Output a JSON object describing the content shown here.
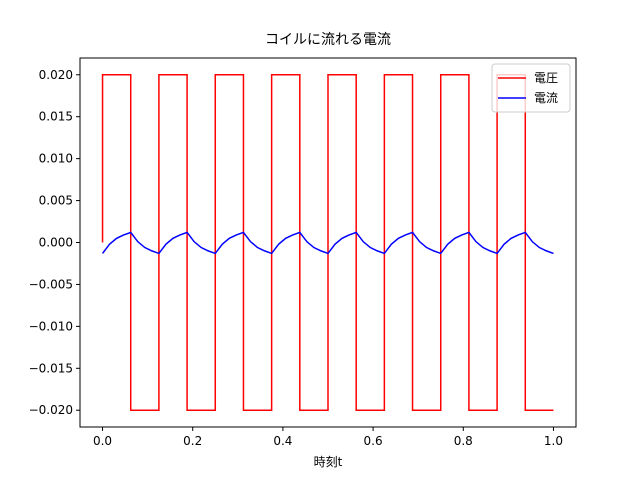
{
  "chart_data": {
    "type": "line",
    "title": "コイルに流れる電流",
    "x_label": "時刻t",
    "x": [
      0,
      0,
      0.015625,
      0.03125,
      0.046875,
      0.0625,
      0.0625,
      0.078125,
      0.09375,
      0.109375,
      0.125,
      0.125,
      0.140625,
      0.15625,
      0.171875,
      0.1875,
      0.1875,
      0.203125,
      0.21875,
      0.234375,
      0.25,
      0.25,
      0.265625,
      0.28125,
      0.296875,
      0.3125,
      0.3125,
      0.328125,
      0.34375,
      0.359375,
      0.375,
      0.375,
      0.390625,
      0.40625,
      0.421875,
      0.4375,
      0.4375,
      0.453125,
      0.46875,
      0.484375,
      0.5,
      0.5,
      0.515625,
      0.53125,
      0.546875,
      0.5625,
      0.5625,
      0.578125,
      0.59375,
      0.609375,
      0.625,
      0.625,
      0.640625,
      0.65625,
      0.671875,
      0.6875,
      0.6875,
      0.703125,
      0.71875,
      0.734375,
      0.75,
      0.75,
      0.765625,
      0.78125,
      0.796875,
      0.8125,
      0.8125,
      0.828125,
      0.84375,
      0.859375,
      0.875,
      0.875,
      0.890625,
      0.90625,
      0.921875,
      0.9375,
      0.9375,
      0.953125,
      0.96875,
      0.984375,
      1
    ],
    "series": [
      {
        "name": "電圧",
        "color": "#ff0000",
        "values": [
          0,
          0.02,
          0.02,
          0.02,
          0.02,
          0.02,
          -0.02,
          -0.02,
          -0.02,
          -0.02,
          -0.02,
          0.02,
          0.02,
          0.02,
          0.02,
          0.02,
          -0.02,
          -0.02,
          -0.02,
          -0.02,
          -0.02,
          0.02,
          0.02,
          0.02,
          0.02,
          0.02,
          -0.02,
          -0.02,
          -0.02,
          -0.02,
          -0.02,
          0.02,
          0.02,
          0.02,
          0.02,
          0.02,
          -0.02,
          -0.02,
          -0.02,
          -0.02,
          -0.02,
          0.02,
          0.02,
          0.02,
          0.02,
          0.02,
          -0.02,
          -0.02,
          -0.02,
          -0.02,
          -0.02,
          0.02,
          0.02,
          0.02,
          0.02,
          0.02,
          -0.02,
          -0.02,
          -0.02,
          -0.02,
          -0.02,
          0.02,
          0.02,
          0.02,
          0.02,
          0.02,
          -0.02,
          -0.02,
          -0.02,
          -0.02,
          -0.02,
          0.02,
          0.02,
          0.02,
          0.02,
          0.02,
          -0.02,
          -0.02,
          -0.02,
          -0.02,
          -0.02
        ]
      },
      {
        "name": "電流",
        "color": "#0000ff",
        "values": [
          -0.0013,
          -0.0013,
          -0.0002,
          0.0005,
          0.0009,
          0.0012,
          0.0012,
          0.0001,
          -0.0006,
          -0.001,
          -0.0013,
          -0.0013,
          -0.0002,
          0.0005,
          0.0009,
          0.0012,
          0.0012,
          0.0001,
          -0.0006,
          -0.001,
          -0.0013,
          -0.0013,
          -0.0002,
          0.0005,
          0.0009,
          0.0012,
          0.0012,
          0.0001,
          -0.0006,
          -0.001,
          -0.0013,
          -0.0013,
          -0.0002,
          0.0005,
          0.0009,
          0.0012,
          0.0012,
          0.0001,
          -0.0006,
          -0.001,
          -0.0013,
          -0.0013,
          -0.0002,
          0.0005,
          0.0009,
          0.0012,
          0.0012,
          0.0001,
          -0.0006,
          -0.001,
          -0.0013,
          -0.0013,
          -0.0002,
          0.0005,
          0.0009,
          0.0012,
          0.0012,
          0.0001,
          -0.0006,
          -0.001,
          -0.0013,
          -0.0013,
          -0.0002,
          0.0005,
          0.0009,
          0.0012,
          0.0012,
          0.0001,
          -0.0006,
          -0.001,
          -0.0013,
          -0.0013,
          -0.0002,
          0.0005,
          0.0009,
          0.0012,
          0.0012,
          0.0001,
          -0.0006,
          -0.001,
          -0.0013
        ]
      }
    ],
    "xlim": [
      -0.05,
      1.05
    ],
    "ylim": [
      -0.022,
      0.022
    ],
    "xticks": [
      {
        "value": 0,
        "label": "0.0"
      },
      {
        "value": 0.2,
        "label": "0.2"
      },
      {
        "value": 0.4,
        "label": "0.4"
      },
      {
        "value": 0.6,
        "label": "0.6"
      },
      {
        "value": 0.8,
        "label": "0.8"
      },
      {
        "value": 1,
        "label": "1.0"
      }
    ],
    "yticks": [
      {
        "value": -0.02,
        "label": "−0.020"
      },
      {
        "value": -0.015,
        "label": "−0.015"
      },
      {
        "value": -0.01,
        "label": "−0.010"
      },
      {
        "value": -0.005,
        "label": "−0.005"
      },
      {
        "value": 0,
        "label": "0.000"
      },
      {
        "value": 0.005,
        "label": "0.005"
      },
      {
        "value": 0.01,
        "label": "0.010"
      },
      {
        "value": 0.015,
        "label": "0.015"
      },
      {
        "value": 0.02,
        "label": "0.020"
      }
    ],
    "grid": false,
    "legend": "upper right"
  }
}
